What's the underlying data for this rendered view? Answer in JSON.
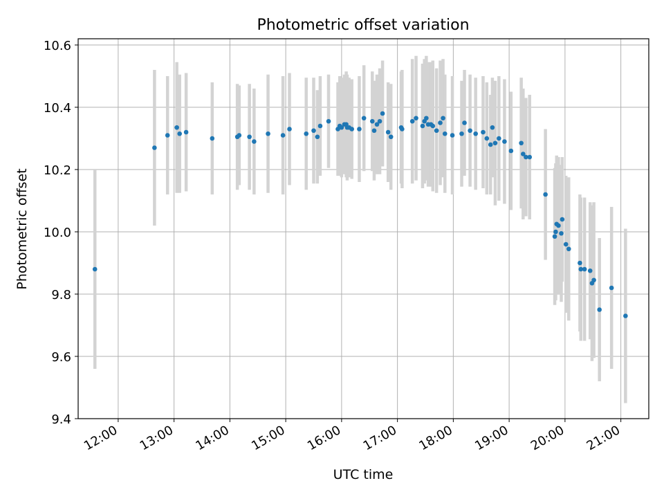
{
  "chart_data": {
    "type": "scatter",
    "title": "Photometric offset variation",
    "xlabel": "UTC time",
    "ylabel": "Photometric offset",
    "ylim": [
      9.4,
      10.62
    ],
    "xlim": [
      "11:17",
      "21:30"
    ],
    "yticks": [
      "9.4",
      "9.6",
      "9.8",
      "10.0",
      "10.2",
      "10.4",
      "10.6"
    ],
    "xticks": [
      "12:00",
      "13:00",
      "14:00",
      "15:00",
      "16:00",
      "17:00",
      "18:00",
      "19:00",
      "20:00",
      "21:00"
    ],
    "grid": true,
    "colors": {
      "point": "#1f77b4",
      "errorbar": "#d3d3d3"
    },
    "series": [
      {
        "x": [
          "11:35",
          "12:39",
          "12:53",
          "13:03",
          "13:06",
          "13:13",
          "13:41",
          "14:08",
          "14:10",
          "14:21",
          "14:26",
          "14:41",
          "14:57",
          "15:04",
          "15:22",
          "15:30",
          "15:34",
          "15:37",
          "15:46",
          "15:56",
          "15:58",
          "16:00",
          "16:03",
          "16:05",
          "16:06",
          "16:08",
          "16:11",
          "16:19",
          "16:24",
          "16:33",
          "16:35",
          "16:38",
          "16:41",
          "16:44",
          "16:50",
          "16:53",
          "17:04",
          "17:05",
          "17:16",
          "17:20",
          "17:27",
          "17:29",
          "17:31",
          "17:33",
          "17:36",
          "17:38",
          "17:42",
          "17:46",
          "17:49",
          "17:51",
          "17:59",
          "18:09",
          "18:12",
          "18:18",
          "18:24",
          "18:32",
          "18:36",
          "18:40",
          "18:42",
          "18:45",
          "18:49",
          "18:55",
          "19:02",
          "19:13",
          "19:15",
          "19:18",
          "19:22",
          "19:39",
          "19:49",
          "19:50",
          "19:51",
          "19:53",
          "19:56",
          "19:57",
          "20:01",
          "20:04",
          "20:16",
          "20:17",
          "20:21",
          "20:27",
          "20:29",
          "20:31",
          "20:37",
          "20:50",
          "21:05"
        ],
        "y": [
          9.88,
          10.27,
          10.31,
          10.335,
          10.315,
          10.32,
          10.3,
          10.305,
          10.31,
          10.305,
          10.29,
          10.315,
          10.31,
          10.33,
          10.315,
          10.325,
          10.305,
          10.34,
          10.355,
          10.33,
          10.34,
          10.335,
          10.345,
          10.345,
          10.335,
          10.335,
          10.33,
          10.33,
          10.365,
          10.355,
          10.325,
          10.345,
          10.355,
          10.38,
          10.32,
          10.305,
          10.335,
          10.33,
          10.355,
          10.365,
          10.34,
          10.355,
          10.365,
          10.345,
          10.345,
          10.34,
          10.325,
          10.35,
          10.365,
          10.315,
          10.31,
          10.315,
          10.35,
          10.325,
          10.315,
          10.32,
          10.3,
          10.28,
          10.335,
          10.285,
          10.3,
          10.29,
          10.26,
          10.285,
          10.25,
          10.24,
          10.24,
          10.12,
          9.985,
          10.0,
          10.025,
          10.02,
          9.995,
          10.04,
          9.96,
          9.945,
          9.9,
          9.88,
          9.88,
          9.875,
          9.835,
          9.845,
          9.75,
          9.82,
          9.73
        ],
        "yerr": [
          0.32,
          0.25,
          0.19,
          0.21,
          0.19,
          0.19,
          0.18,
          0.17,
          0.16,
          0.17,
          0.17,
          0.19,
          0.19,
          0.18,
          0.18,
          0.17,
          0.15,
          0.16,
          0.15,
          0.15,
          0.16,
          0.16,
          0.16,
          0.17,
          0.17,
          0.16,
          0.16,
          0.17,
          0.17,
          0.16,
          0.16,
          0.16,
          0.17,
          0.17,
          0.16,
          0.17,
          0.18,
          0.19,
          0.2,
          0.2,
          0.2,
          0.2,
          0.2,
          0.2,
          0.2,
          0.21,
          0.2,
          0.2,
          0.19,
          0.19,
          0.19,
          0.17,
          0.17,
          0.18,
          0.18,
          0.18,
          0.18,
          0.16,
          0.16,
          0.2,
          0.2,
          0.2,
          0.19,
          0.21,
          0.21,
          0.19,
          0.2,
          0.21,
          0.22,
          0.22,
          0.22,
          0.22,
          0.22,
          0.2,
          0.22,
          0.23,
          0.22,
          0.23,
          0.23,
          0.22,
          0.25,
          0.25,
          0.23,
          0.26,
          0.28
        ]
      }
    ]
  }
}
